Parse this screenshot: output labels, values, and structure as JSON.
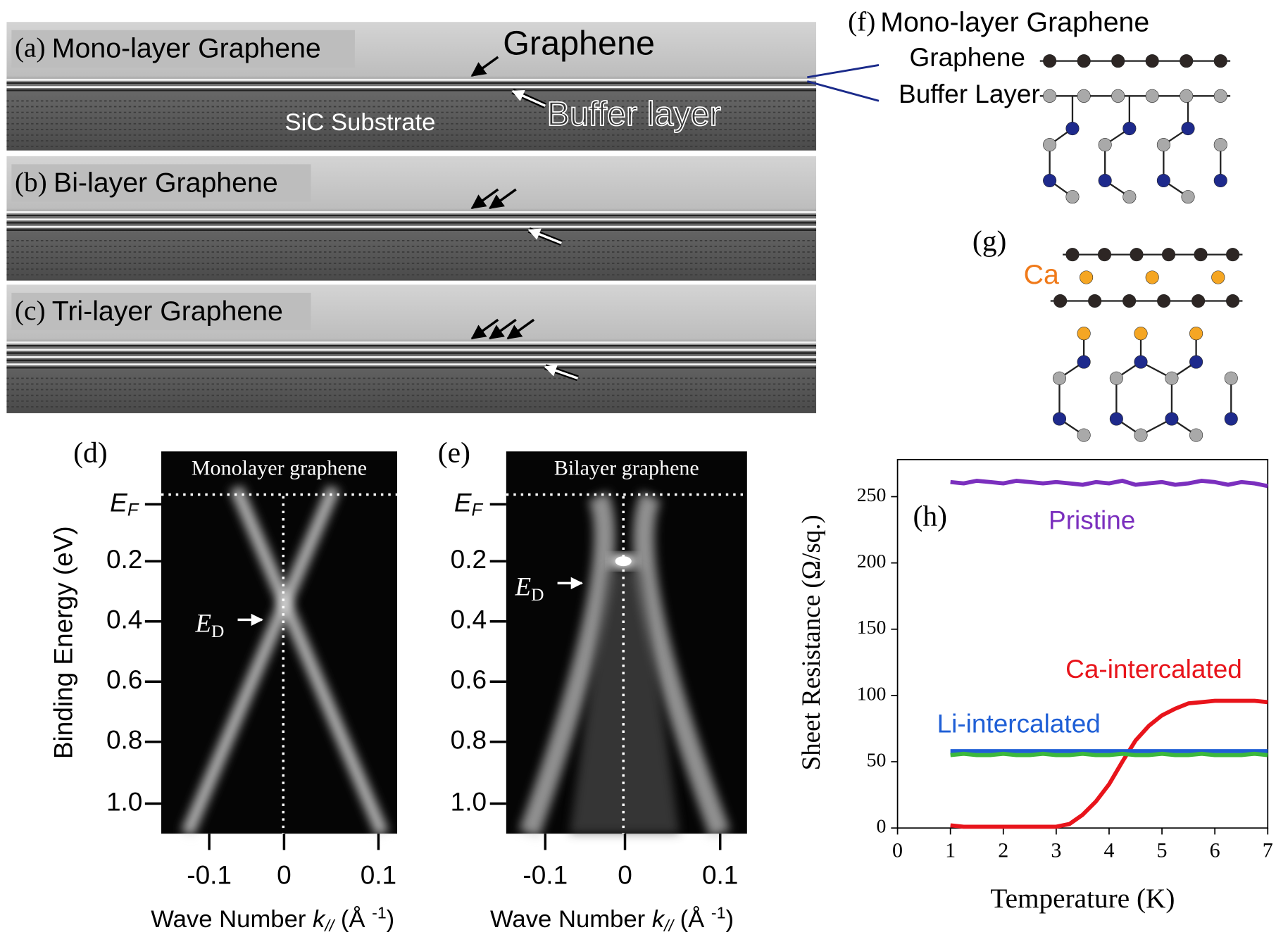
{
  "tem": {
    "panels": [
      {
        "label": "(a)",
        "name": "Mono-layer Graphene"
      },
      {
        "label": "(b)",
        "name": "Bi-layer Graphene"
      },
      {
        "label": "(c)",
        "name": "Tri-layer Graphene"
      }
    ],
    "annotations": {
      "graphene": "Graphene",
      "buffer": "Buffer layer",
      "substrate": "SiC Substrate"
    }
  },
  "arpes": {
    "y_label": "Binding Energy (eV)",
    "ef": [
      "E",
      "F"
    ],
    "ed": [
      "E",
      "D"
    ],
    "yticks": [
      "0.2",
      "0.4",
      "0.6",
      "0.8",
      "1.0"
    ],
    "xticks": [
      "-0.1",
      "0",
      "0.1"
    ],
    "x_label": [
      "Wave Number ",
      "k",
      "//",
      " (Å ",
      "-1",
      ")"
    ],
    "panels": [
      {
        "label": "(d)",
        "title": "Monolayer graphene"
      },
      {
        "label": "(e)",
        "title": "Bilayer graphene"
      }
    ]
  },
  "structures": {
    "f": {
      "label": "(f)",
      "name": "Mono-layer Graphene",
      "graphene": "Graphene",
      "buffer": "Buffer Layer"
    },
    "g": {
      "label": "(g)",
      "ca": "Ca"
    }
  },
  "chart_data": {
    "type": "line",
    "panel_label": "(h)",
    "x_label": "Temperature (K)",
    "y_label": "Sheet Resistance (Ω/sq.)",
    "x": [
      1,
      1.25,
      1.5,
      1.75,
      2,
      2.25,
      2.5,
      2.75,
      3,
      3.25,
      3.5,
      3.75,
      4,
      4.25,
      4.5,
      4.75,
      5,
      5.25,
      5.5,
      5.75,
      6,
      6.25,
      6.5,
      6.75,
      7
    ],
    "series": [
      {
        "name": "Pristine",
        "color": "#7b2fbe",
        "values": [
          261,
          260,
          262,
          261,
          260,
          262,
          261,
          260,
          261,
          260,
          259,
          261,
          260,
          262,
          259,
          260,
          261,
          259,
          260,
          262,
          261,
          259,
          261,
          260,
          258
        ]
      },
      {
        "name": "Ca-intercalated",
        "color": "#e8141b",
        "values": [
          2,
          1,
          1,
          1,
          1,
          1,
          1,
          1,
          1,
          3,
          10,
          20,
          33,
          50,
          66,
          77,
          85,
          90,
          94,
          95,
          96,
          96,
          96,
          96,
          95
        ]
      },
      {
        "name": "Li-intercalated",
        "color": "#1f5fd6",
        "values": [
          58,
          58,
          58,
          58,
          58,
          58,
          58,
          58,
          58,
          58,
          58,
          58,
          58,
          58,
          58,
          58,
          58,
          58,
          58,
          58,
          58,
          58,
          58,
          58,
          58
        ]
      },
      {
        "color": "#3cb83c",
        "values": [
          55,
          56,
          55,
          55,
          56,
          55,
          55,
          56,
          55,
          55,
          56,
          55,
          55,
          56,
          55,
          55,
          56,
          55,
          55,
          56,
          55,
          55,
          55,
          56,
          55
        ]
      }
    ],
    "xlim": [
      0,
      7
    ],
    "ylim": [
      0,
      278
    ],
    "xticks": [
      0,
      1,
      2,
      3,
      4,
      5,
      6,
      7
    ],
    "yticks": [
      0,
      50,
      100,
      150,
      200,
      250
    ]
  }
}
